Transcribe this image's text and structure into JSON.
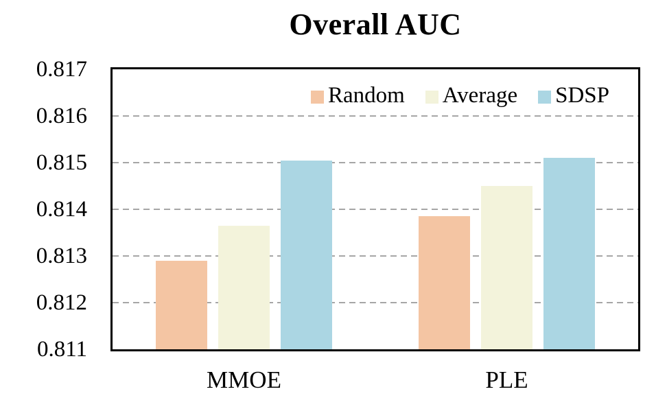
{
  "chart_data": {
    "type": "bar",
    "title": "Overall AUC",
    "categories": [
      "MMOE",
      "PLE"
    ],
    "series": [
      {
        "name": "Random",
        "color": "#F4C5A3",
        "values": [
          0.8129,
          0.81385
        ]
      },
      {
        "name": "Average",
        "color": "#F3F3DB",
        "values": [
          0.81365,
          0.8145
        ]
      },
      {
        "name": "SDSP",
        "color": "#ABD6E3",
        "values": [
          0.81505,
          0.8151
        ]
      }
    ],
    "ylim": [
      0.811,
      0.817
    ],
    "ytick_values": [
      0.811,
      0.812,
      0.813,
      0.814,
      0.815,
      0.816,
      0.817
    ],
    "ytick_labels": [
      "0.811",
      "0.812",
      "0.813",
      "0.814",
      "0.815",
      "0.816",
      "0.817"
    ],
    "xlabel": "",
    "ylabel": "",
    "grid": "horizontal-dashed-between-min-max",
    "legend_position": "top-right-inside-plot",
    "colors": {
      "background": "#FFFFFF",
      "axis_border": "#000000",
      "gridline": "#A6A6A6",
      "text": "#000000"
    }
  }
}
